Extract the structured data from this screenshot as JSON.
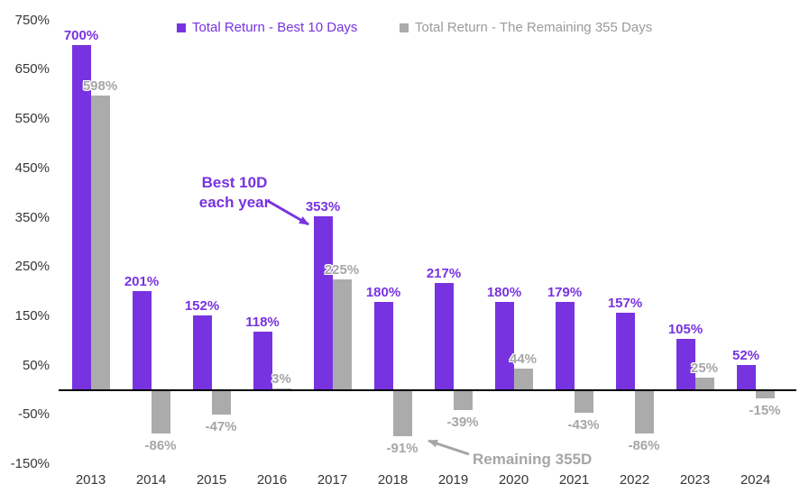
{
  "chart_data": {
    "type": "bar",
    "title": "",
    "categories": [
      "2013",
      "2014",
      "2015",
      "2016",
      "2017",
      "2018",
      "2019",
      "2020",
      "2021",
      "2022",
      "2023",
      "2024"
    ],
    "series": [
      {
        "name": "Total Return - Best 10 Days",
        "color": "#7733E0",
        "values": [
          700,
          201,
          152,
          118,
          353,
          180,
          217,
          180,
          179,
          157,
          105,
          52
        ]
      },
      {
        "name": "Total Return - The Remaining 355 Days",
        "color": "#ABABAB",
        "values": [
          598,
          -86,
          -47,
          3,
          225,
          -91,
          -39,
          44,
          -43,
          -86,
          25,
          -15
        ]
      }
    ],
    "value_label_format": "{value}%",
    "y_axis": {
      "ticks": [
        {
          "label": "750%",
          "value": 750
        },
        {
          "label": "650%",
          "value": 650
        },
        {
          "label": "550%",
          "value": 550
        },
        {
          "label": "450%",
          "value": 450
        },
        {
          "label": "350%",
          "value": 350
        },
        {
          "label": "250%",
          "value": 250
        },
        {
          "label": "150%",
          "value": 150
        },
        {
          "label": "50%",
          "value": 50
        },
        {
          "label": "-50%",
          "value": -50
        },
        {
          "label": "-150%",
          "value": -150
        }
      ],
      "ylim": [
        -150,
        750
      ],
      "grid": false
    },
    "legend": {
      "position": "top"
    },
    "annotations": [
      {
        "id": "best10d",
        "text_lines": [
          "Best 10D",
          "each year"
        ],
        "color": "#7733E0",
        "points_to": "2017 best-10-days bar"
      },
      {
        "id": "remaining355d",
        "text_lines": [
          "Remaining 355D"
        ],
        "color": "#A6A6A6",
        "points_to": "2018 remaining-355-days bar"
      }
    ],
    "colors": {
      "accent_purple": "#7733E0",
      "gray_bar": "#ABABAB",
      "gray_label": "#A6A6A6",
      "axis_text": "#363636",
      "axis_line": "#000000"
    }
  }
}
